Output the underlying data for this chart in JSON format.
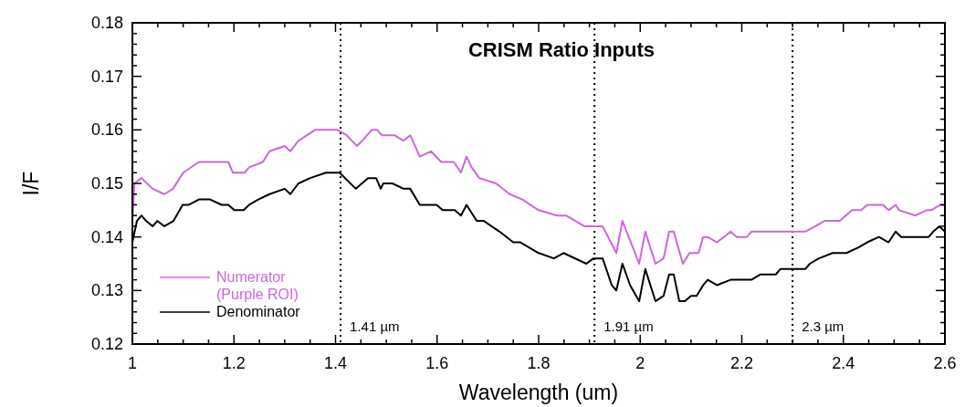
{
  "chart_data": {
    "type": "line",
    "title": "CRISM Ratio Inputs",
    "xlabel": "Wavelength (um)",
    "ylabel": "I/F",
    "xlim": [
      1,
      2.6
    ],
    "ylim": [
      0.12,
      0.18
    ],
    "xticks": [
      1,
      {
        "value": 1.05,
        "label": null
      },
      {
        "value": 1.1,
        "label": null
      },
      {
        "value": 1.15,
        "label": null
      },
      1.2,
      {
        "value": 1.25,
        "label": null
      },
      {
        "value": 1.3,
        "label": null
      },
      {
        "value": 1.35,
        "label": null
      },
      1.4,
      {
        "value": 1.45,
        "label": null
      },
      {
        "value": 1.5,
        "label": null
      },
      {
        "value": 1.55,
        "label": null
      },
      1.6,
      {
        "value": 1.65,
        "label": null
      },
      {
        "value": 1.7,
        "label": null
      },
      {
        "value": 1.75,
        "label": null
      },
      1.8,
      {
        "value": 1.85,
        "label": null
      },
      {
        "value": 1.9,
        "label": null
      },
      {
        "value": 1.95,
        "label": null
      },
      2,
      {
        "value": 2.05,
        "label": null
      },
      {
        "value": 2.1,
        "label": null
      },
      {
        "value": 2.15,
        "label": null
      },
      2.2,
      {
        "value": 2.25,
        "label": null
      },
      {
        "value": 2.3,
        "label": null
      },
      {
        "value": 2.35,
        "label": null
      },
      2.4,
      {
        "value": 2.45,
        "label": null
      },
      {
        "value": 2.5,
        "label": null
      },
      {
        "value": 2.55,
        "label": null
      },
      2.6
    ],
    "yticks": [
      0.12,
      {
        "value": 0.122,
        "label": null
      },
      {
        "value": 0.124,
        "label": null
      },
      {
        "value": 0.126,
        "label": null
      },
      {
        "value": 0.128,
        "label": null
      },
      0.13,
      {
        "value": 0.132,
        "label": null
      },
      {
        "value": 0.134,
        "label": null
      },
      {
        "value": 0.136,
        "label": null
      },
      {
        "value": 0.138,
        "label": null
      },
      0.14,
      {
        "value": 0.142,
        "label": null
      },
      {
        "value": 0.144,
        "label": null
      },
      {
        "value": 0.146,
        "label": null
      },
      {
        "value": 0.148,
        "label": null
      },
      0.15,
      {
        "value": 0.152,
        "label": null
      },
      {
        "value": 0.154,
        "label": null
      },
      {
        "value": 0.156,
        "label": null
      },
      {
        "value": 0.158,
        "label": null
      },
      0.16,
      {
        "value": 0.162,
        "label": null
      },
      {
        "value": 0.164,
        "label": null
      },
      {
        "value": 0.166,
        "label": null
      },
      {
        "value": 0.168,
        "label": null
      },
      0.17,
      {
        "value": 0.172,
        "label": null
      },
      {
        "value": 0.174,
        "label": null
      },
      {
        "value": 0.176,
        "label": null
      },
      {
        "value": 0.178,
        "label": null
      },
      0.18
    ],
    "grid": false,
    "legend": "bottom left",
    "line_style": "solid",
    "marker": "none",
    "ref_lines": [
      {
        "axis": "x",
        "value": 1.41,
        "label": "1.41 µm",
        "line_style": "dotted"
      },
      {
        "axis": "x",
        "value": 1.91,
        "label": "1.91 µm",
        "line_style": "dotted"
      },
      {
        "axis": "x",
        "value": 2.3,
        "label": "2.3 µm",
        "line_style": "dotted"
      }
    ],
    "series": [
      {
        "name": "Numerator (Purple ROI)",
        "color": "#cc66dd",
        "x": [
          1.0,
          1.004,
          1.018,
          1.04,
          1.063,
          1.08,
          1.1,
          1.131,
          1.16,
          1.189,
          1.198,
          1.221,
          1.23,
          1.257,
          1.27,
          1.3,
          1.311,
          1.327,
          1.36,
          1.381,
          1.392,
          1.404,
          1.422,
          1.442,
          1.453,
          1.471,
          1.482,
          1.491,
          1.516,
          1.534,
          1.547,
          1.566,
          1.588,
          1.608,
          1.633,
          1.647,
          1.658,
          1.668,
          1.683,
          1.716,
          1.743,
          1.768,
          1.8,
          1.836,
          1.854,
          1.89,
          1.926,
          1.953,
          1.965,
          1.998,
          2.01,
          2.03,
          2.046,
          2.057,
          2.066,
          2.084,
          2.097,
          2.115,
          2.124,
          2.133,
          2.151,
          2.165,
          2.178,
          2.19,
          2.21,
          2.219,
          2.25,
          2.273,
          2.291,
          2.309,
          2.325,
          2.345,
          2.363,
          2.379,
          2.393,
          2.417,
          2.435,
          2.447,
          2.478,
          2.489,
          2.503,
          2.51,
          2.542,
          2.564,
          2.573,
          2.591,
          2.6
        ],
        "values": [
          0.143,
          0.15,
          0.151,
          0.149,
          0.148,
          0.149,
          0.152,
          0.154,
          0.154,
          0.154,
          0.152,
          0.152,
          0.153,
          0.154,
          0.156,
          0.157,
          0.156,
          0.158,
          0.16,
          0.16,
          0.16,
          0.16,
          0.159,
          0.157,
          0.158,
          0.16,
          0.16,
          0.159,
          0.159,
          0.158,
          0.159,
          0.155,
          0.156,
          0.154,
          0.154,
          0.152,
          0.155,
          0.153,
          0.151,
          0.15,
          0.148,
          0.147,
          0.145,
          0.144,
          0.144,
          0.142,
          0.142,
          0.137,
          0.143,
          0.135,
          0.141,
          0.135,
          0.136,
          0.141,
          0.141,
          0.135,
          0.137,
          0.137,
          0.14,
          0.14,
          0.139,
          0.14,
          0.141,
          0.14,
          0.14,
          0.141,
          0.141,
          0.141,
          0.141,
          0.141,
          0.141,
          0.142,
          0.143,
          0.143,
          0.143,
          0.145,
          0.145,
          0.146,
          0.146,
          0.145,
          0.146,
          0.145,
          0.144,
          0.145,
          0.145,
          0.146,
          0.146
        ]
      },
      {
        "name": "Denominator",
        "color": "#000000",
        "x": [
          1.0,
          1.009,
          1.018,
          1.027,
          1.04,
          1.049,
          1.063,
          1.081,
          1.099,
          1.111,
          1.131,
          1.153,
          1.176,
          1.189,
          1.201,
          1.219,
          1.23,
          1.248,
          1.27,
          1.3,
          1.311,
          1.327,
          1.35,
          1.381,
          1.392,
          1.408,
          1.44,
          1.464,
          1.48,
          1.489,
          1.494,
          1.512,
          1.534,
          1.547,
          1.566,
          1.588,
          1.599,
          1.611,
          1.635,
          1.647,
          1.658,
          1.678,
          1.692,
          1.723,
          1.75,
          1.764,
          1.8,
          1.83,
          1.849,
          1.894,
          1.908,
          1.926,
          1.944,
          1.953,
          1.965,
          1.98,
          1.998,
          2.01,
          2.03,
          2.046,
          2.057,
          2.066,
          2.077,
          2.088,
          2.1,
          2.111,
          2.124,
          2.133,
          2.151,
          2.178,
          2.19,
          2.21,
          2.219,
          2.237,
          2.25,
          2.267,
          2.276,
          2.291,
          2.309,
          2.325,
          2.334,
          2.352,
          2.379,
          2.393,
          2.406,
          2.429,
          2.447,
          2.47,
          2.489,
          2.503,
          2.514,
          2.531,
          2.55,
          2.568,
          2.577,
          2.589,
          2.6
        ],
        "values": [
          0.139,
          0.143,
          0.144,
          0.143,
          0.142,
          0.143,
          0.142,
          0.143,
          0.146,
          0.146,
          0.147,
          0.147,
          0.146,
          0.146,
          0.145,
          0.145,
          0.146,
          0.147,
          0.148,
          0.149,
          0.148,
          0.15,
          0.151,
          0.152,
          0.152,
          0.152,
          0.149,
          0.151,
          0.151,
          0.149,
          0.15,
          0.15,
          0.149,
          0.149,
          0.146,
          0.146,
          0.146,
          0.145,
          0.145,
          0.144,
          0.146,
          0.143,
          0.143,
          0.141,
          0.139,
          0.139,
          0.137,
          0.136,
          0.137,
          0.135,
          0.136,
          0.136,
          0.131,
          0.13,
          0.135,
          0.131,
          0.128,
          0.134,
          0.128,
          0.129,
          0.133,
          0.133,
          0.128,
          0.128,
          0.129,
          0.129,
          0.131,
          0.132,
          0.131,
          0.132,
          0.132,
          0.132,
          0.132,
          0.133,
          0.133,
          0.133,
          0.134,
          0.134,
          0.134,
          0.134,
          0.135,
          0.136,
          0.137,
          0.137,
          0.137,
          0.138,
          0.139,
          0.14,
          0.139,
          0.141,
          0.14,
          0.14,
          0.14,
          0.14,
          0.141,
          0.142,
          0.141
        ]
      }
    ]
  }
}
